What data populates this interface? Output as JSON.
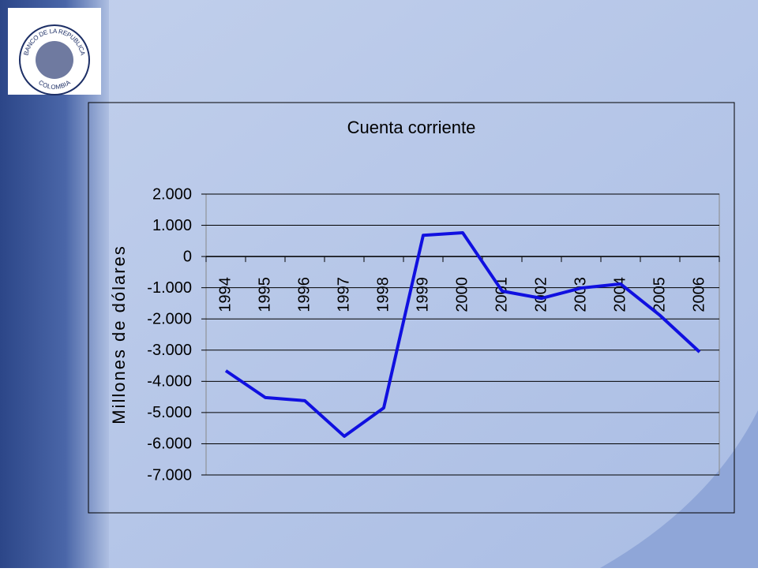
{
  "logo": {
    "top": "BANCO DE LA REPUBLICA",
    "bottom": "COLOMBIA"
  },
  "chart_data": {
    "type": "line",
    "title": "Cuenta corriente",
    "y_label": "Millones de dólares",
    "categories": [
      "1994",
      "1995",
      "1996",
      "1997",
      "1998",
      "1999",
      "2000",
      "2001",
      "2002",
      "2003",
      "2004",
      "2005",
      "2006"
    ],
    "series": [
      {
        "name": "Cuenta corriente",
        "color": "#1010e0",
        "values": [
          -3660,
          -4520,
          -4620,
          -5760,
          -4850,
          680,
          760,
          -1110,
          -1340,
          -1010,
          -880,
          -1890,
          -3060
        ]
      }
    ],
    "ylim": [
      -7000,
      2000
    ],
    "yticks": [
      {
        "value": -7000,
        "label": "-7.000"
      },
      {
        "value": -6000,
        "label": "-6.000"
      },
      {
        "value": -5000,
        "label": "-5.000"
      },
      {
        "value": -4000,
        "label": "-4.000"
      },
      {
        "value": -3000,
        "label": "-3.000"
      },
      {
        "value": -2000,
        "label": "-2.000"
      },
      {
        "value": -1000,
        "label": "-1.000"
      },
      0,
      {
        "value": 1000,
        "label": "1.000"
      },
      {
        "value": 2000,
        "label": "2.000"
      }
    ],
    "grid": true
  }
}
